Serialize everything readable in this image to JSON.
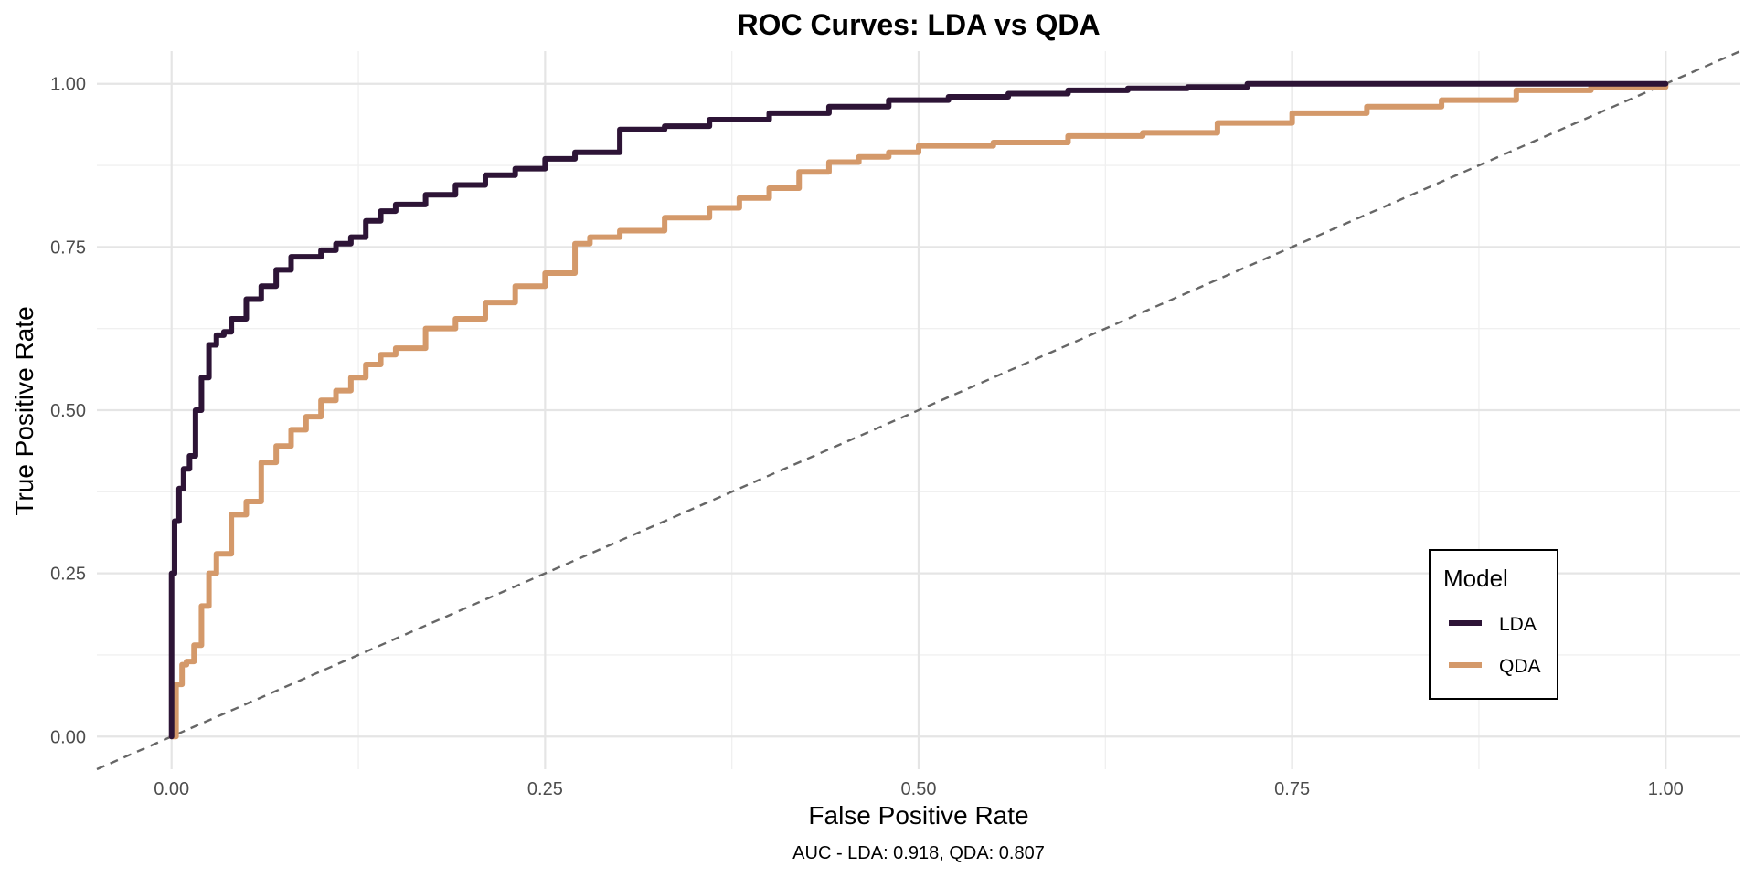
{
  "chart_data": {
    "type": "line",
    "title": "ROC Curves: LDA vs QDA",
    "xlabel": "False Positive Rate",
    "ylabel": "True Positive Rate",
    "caption": "AUC - LDA: 0.918, QDA: 0.807",
    "xlim": [
      -0.05,
      1.05
    ],
    "ylim": [
      -0.05,
      1.05
    ],
    "x_ticks": [
      "0.00",
      "0.25",
      "0.50",
      "0.75",
      "1.00"
    ],
    "y_ticks": [
      "0.00",
      "0.25",
      "0.50",
      "0.75",
      "1.00"
    ],
    "grid": true,
    "legend": {
      "title": "Model",
      "position": "bottom-right"
    },
    "reference_line": {
      "style": "dashed",
      "color": "#666666",
      "from": [
        0,
        0
      ],
      "to": [
        1,
        1
      ]
    },
    "series": [
      {
        "name": "LDA",
        "color": "#2d1436",
        "x": [
          0,
          0,
          0.002,
          0.005,
          0.008,
          0.012,
          0.016,
          0.02,
          0.025,
          0.03,
          0.035,
          0.04,
          0.05,
          0.06,
          0.07,
          0.08,
          0.09,
          0.1,
          0.11,
          0.12,
          0.13,
          0.14,
          0.15,
          0.17,
          0.19,
          0.21,
          0.23,
          0.25,
          0.27,
          0.3,
          0.33,
          0.36,
          0.4,
          0.44,
          0.48,
          0.52,
          0.56,
          0.6,
          0.64,
          0.68,
          0.72,
          0.8,
          0.9,
          1.0
        ],
        "y": [
          0,
          0.25,
          0.33,
          0.38,
          0.41,
          0.43,
          0.5,
          0.55,
          0.6,
          0.615,
          0.62,
          0.64,
          0.67,
          0.69,
          0.715,
          0.735,
          0.735,
          0.745,
          0.755,
          0.765,
          0.79,
          0.805,
          0.815,
          0.83,
          0.845,
          0.86,
          0.87,
          0.885,
          0.895,
          0.93,
          0.935,
          0.945,
          0.955,
          0.965,
          0.975,
          0.98,
          0.985,
          0.99,
          0.993,
          0.995,
          1.0,
          1.0,
          1.0,
          1.0
        ]
      },
      {
        "name": "QDA",
        "color": "#d4996a",
        "x": [
          0,
          0.003,
          0.007,
          0.01,
          0.015,
          0.02,
          0.025,
          0.03,
          0.04,
          0.05,
          0.06,
          0.07,
          0.08,
          0.09,
          0.1,
          0.11,
          0.12,
          0.13,
          0.14,
          0.15,
          0.17,
          0.19,
          0.21,
          0.23,
          0.25,
          0.27,
          0.28,
          0.3,
          0.33,
          0.36,
          0.38,
          0.4,
          0.42,
          0.44,
          0.46,
          0.48,
          0.5,
          0.55,
          0.6,
          0.65,
          0.7,
          0.75,
          0.8,
          0.85,
          0.9,
          0.95,
          1.0
        ],
        "y": [
          0,
          0.08,
          0.11,
          0.115,
          0.14,
          0.2,
          0.25,
          0.28,
          0.34,
          0.36,
          0.42,
          0.445,
          0.47,
          0.49,
          0.515,
          0.53,
          0.55,
          0.57,
          0.585,
          0.595,
          0.625,
          0.64,
          0.665,
          0.69,
          0.71,
          0.755,
          0.765,
          0.775,
          0.795,
          0.81,
          0.825,
          0.84,
          0.865,
          0.88,
          0.888,
          0.895,
          0.905,
          0.91,
          0.92,
          0.925,
          0.94,
          0.955,
          0.965,
          0.975,
          0.99,
          0.995,
          1.0
        ]
      }
    ]
  }
}
